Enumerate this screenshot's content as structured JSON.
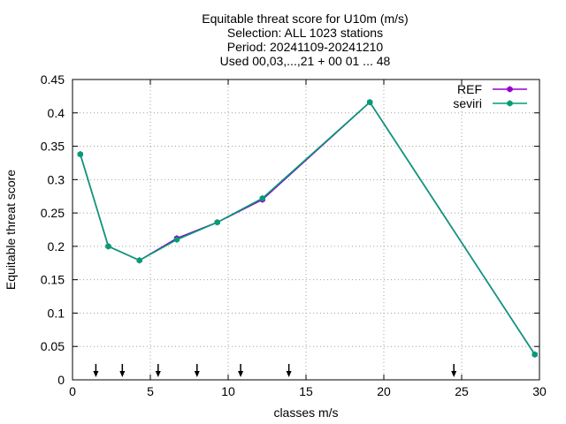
{
  "chart_data": {
    "type": "line",
    "title_lines": [
      "Equitable threat score  for U10m (m/s)",
      "Selection: ALL   1023 stations",
      "Period: 20241109-20241210",
      "Used 00,03,...,21 + 00 01 ... 48"
    ],
    "xlabel": "classes m/s",
    "ylabel": "Equitable threat score",
    "xlim": [
      0,
      30
    ],
    "ylim": [
      0,
      0.45
    ],
    "xticks": [
      "0",
      "5",
      "10",
      "15",
      "20",
      "25",
      "30"
    ],
    "yticks": [
      "0",
      "0.05",
      "0.1",
      "0.15",
      "0.2",
      "0.25",
      "0.3",
      "0.35",
      "0.4",
      "0.45"
    ],
    "grid": true,
    "legend_position": "top-right",
    "arrow_x": [
      1.5,
      3.2,
      5.5,
      8.0,
      10.8,
      13.9,
      24.5
    ],
    "series": [
      {
        "name": "REF",
        "color": "#9400d3",
        "x": [
          0.5,
          2.3,
          4.3,
          6.7,
          9.3,
          12.2,
          19.1,
          29.7
        ],
        "y": [
          0.338,
          0.2,
          0.179,
          0.212,
          0.236,
          0.27,
          0.416,
          0.038
        ]
      },
      {
        "name": "seviri",
        "color": "#009e73",
        "x": [
          0.5,
          2.3,
          4.3,
          6.7,
          9.3,
          12.2,
          19.1,
          29.7
        ],
        "y": [
          0.338,
          0.2,
          0.179,
          0.21,
          0.236,
          0.272,
          0.416,
          0.038
        ]
      }
    ]
  }
}
